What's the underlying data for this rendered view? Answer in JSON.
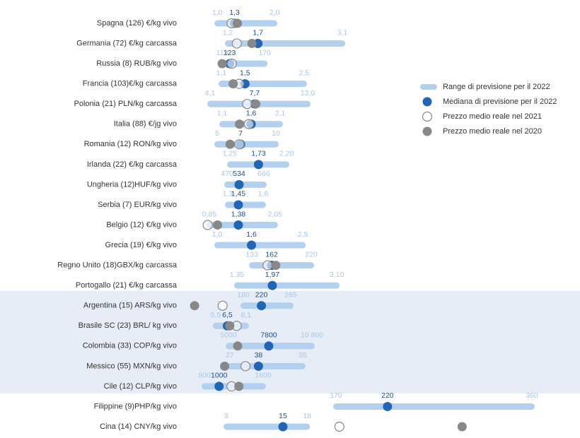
{
  "chart_data": {
    "type": "range-dot",
    "legend": [
      {
        "name": "Range di previsione per il 2022",
        "color": "#b3d0ee"
      },
      {
        "name": "Mediana di previsione per il 2022",
        "color": "#2165b4"
      },
      {
        "name": "Prezzo medio reale nel 2021",
        "color": "#ffffff"
      },
      {
        "name": "Prezzo medio reale nel 2020",
        "color": "#888888"
      }
    ],
    "highlight_rows": [
      14,
      18
    ],
    "rows": [
      {
        "label": "Spagna (126) €/kg vivo",
        "min": 1.0,
        "median": 1.3,
        "max": 2.0,
        "value_labels": [
          "1,0",
          "1,3",
          "2,0"
        ],
        "price_2021": 1.25,
        "price_2020": 1.35,
        "xlim": [
          0.54,
          6.84
        ]
      },
      {
        "label": "Germania (72) €/kg carcassa",
        "min": 1.2,
        "median": 1.7,
        "max": 3.1,
        "value_labels": [
          "1,2",
          "1,7",
          "3,1"
        ],
        "price_2021": 1.35,
        "price_2020": 1.6,
        "xlim": [
          0.59,
          6.57
        ]
      },
      {
        "label": "Russia (8) RUB/kg vivo",
        "min": 113,
        "median": 123,
        "max": 170,
        "value_labels": [
          "113",
          "123",
          "170"
        ],
        "price_2021": 126,
        "price_2020": 113,
        "xlim": [
          71.2,
          555
        ]
      },
      {
        "label": "Francia (103)€/kg carcassa",
        "min": 1.1,
        "median": 1.5,
        "max": 2.5,
        "value_labels": [
          "1,1",
          "1,5",
          "2,5"
        ],
        "price_2021": 1.4,
        "price_2020": 1.3,
        "xlim": [
          0.586,
          6.69
        ]
      },
      {
        "label": "Polonia (21) PLN/kg carcassa",
        "min": 4.1,
        "median": 7.7,
        "max": 12.0,
        "value_labels": [
          "4,1",
          "7,7",
          "12,0"
        ],
        "price_2021": 7.1,
        "price_2020": 7.8,
        "xlim": [
          2.55,
          31.75
        ]
      },
      {
        "label": "Italia (88) €/jg vivo",
        "min": 1.1,
        "median": 1.6,
        "max": 2.1,
        "value_labels": [
          "1,1",
          "1,6",
          "2,1"
        ],
        "price_2021": 1.56,
        "price_2020": 1.4,
        "xlim": [
          0.563,
          6.78
        ]
      },
      {
        "label": "Romania (12) RON/kg vivo",
        "min": 5,
        "median": 7,
        "max": 10,
        "value_labels": [
          "5",
          "7",
          "10"
        ],
        "price_2021": 6.9,
        "price_2020": 6.1,
        "xlim": [
          2.77,
          33.5
        ]
      },
      {
        "label": "Irlanda (22) €/kg carcassa",
        "min": 1.25,
        "median": 1.73,
        "max": 2.2,
        "value_labels": [
          "1,25",
          "1,73",
          "2,20"
        ],
        "price_2021": null,
        "price_2020": null,
        "xlim": [
          0.597,
          6.65
        ]
      },
      {
        "label": "Ungheria (12)HUF/kg vivo",
        "min": 470,
        "median": 534,
        "max": 666,
        "value_labels": [
          "470",
          "534",
          "666"
        ],
        "price_2021": null,
        "price_2020": null,
        "xlim": [
          277.5,
          2201
        ]
      },
      {
        "label": "Serbia (7) EUR/kg vivo",
        "min": 1.3,
        "median": 1.45,
        "max": 1.8,
        "value_labels": [
          "1,3",
          "1,45",
          "1,8"
        ],
        "price_2021": null,
        "price_2020": null,
        "xlim": [
          0.78,
          5.88
        ]
      },
      {
        "label": "Belgio (12) €/kg vivo",
        "min": 0.85,
        "median": 1.38,
        "max": 2.05,
        "value_labels": [
          "0,85",
          "1,38",
          "2,05"
        ],
        "price_2021": 0.82,
        "price_2020": 1.0,
        "xlim": [
          0.515,
          7.1
        ]
      },
      {
        "label": "Grecia (19) €/kg vivo",
        "min": 1.0,
        "median": 1.6,
        "max": 2.5,
        "value_labels": [
          "1,0",
          "1,6",
          "2,5"
        ],
        "price_2021": null,
        "price_2020": null,
        "xlim": [
          0.54,
          6.86
        ]
      },
      {
        "label": "Regno Unito (18)GBX/kg carcassa",
        "min": 133,
        "median": 162,
        "max": 220,
        "value_labels": [
          "133",
          "162",
          "220"
        ],
        "price_2021": 156,
        "price_2020": 168,
        "xlim": [
          43.9,
          572
        ]
      },
      {
        "label": "Portogallo (21) €/kg carcassa",
        "min": 1.35,
        "median": 1.97,
        "max": 3.1,
        "value_labels": [
          "1,35",
          "1,97",
          "3,10"
        ],
        "price_2021": null,
        "price_2020": null,
        "xlim": [
          0.544,
          6.87
        ]
      },
      {
        "label": "Argentina (15) ARS/kg vivo",
        "min": 180,
        "median": 220,
        "max": 285,
        "value_labels": [
          "180",
          "220",
          "285"
        ],
        "price_2021": 134,
        "price_2020": 72,
        "xlim": [
          64,
          863
        ]
      },
      {
        "label": "Brasile SC (23) BRL/ kg vivo",
        "min": 5.5,
        "median": 6.5,
        "max": 8.1,
        "value_labels": [
          "5,5",
          "6,5",
          "8,1"
        ],
        "price_2021": 7.3,
        "price_2020": 6.7,
        "xlim": [
          3.38,
          34.3
        ]
      },
      {
        "label": "Colombia (33) COP/kg vivo",
        "min": 5000,
        "median": 7800,
        "max": 10800,
        "value_labels": [
          "5000",
          "7800",
          "10 800"
        ],
        "price_2021": null,
        "price_2020": 5640,
        "xlim": [
          2394,
          27464
        ]
      },
      {
        "label": "Messico (55) MXN/kg vivo",
        "min": 27,
        "median": 38,
        "max": 55,
        "value_labels": [
          "27",
          "38",
          "55"
        ],
        "price_2021": 33,
        "price_2020": 25,
        "xlim": [
          12.06,
          150.7
        ]
      },
      {
        "label": "Cile (12) CLP/kg vivo",
        "min": 800,
        "median": 1000,
        "max": 1600,
        "value_labels": [
          "800",
          "1000",
          "1600"
        ],
        "price_2021": 1170,
        "price_2020": 1270,
        "xlim": [
          617,
          5533
        ]
      },
      {
        "label": "Filippine (9)PHP/kg vivo",
        "min": 170,
        "median": 220,
        "max": 360,
        "value_labels": [
          "170",
          "220",
          "360"
        ],
        "price_2021": null,
        "price_2020": null,
        "xlim": [
          29.4,
          379.2
        ]
      },
      {
        "label": "Cina (14) CNY/kg vivo",
        "min": 8,
        "median": 15,
        "max": 18,
        "value_labels": [
          "8",
          "15",
          "18"
        ],
        "price_2021": 22,
        "price_2020": 37.2,
        "xlim": [
          3.61,
          48.3
        ]
      }
    ]
  }
}
